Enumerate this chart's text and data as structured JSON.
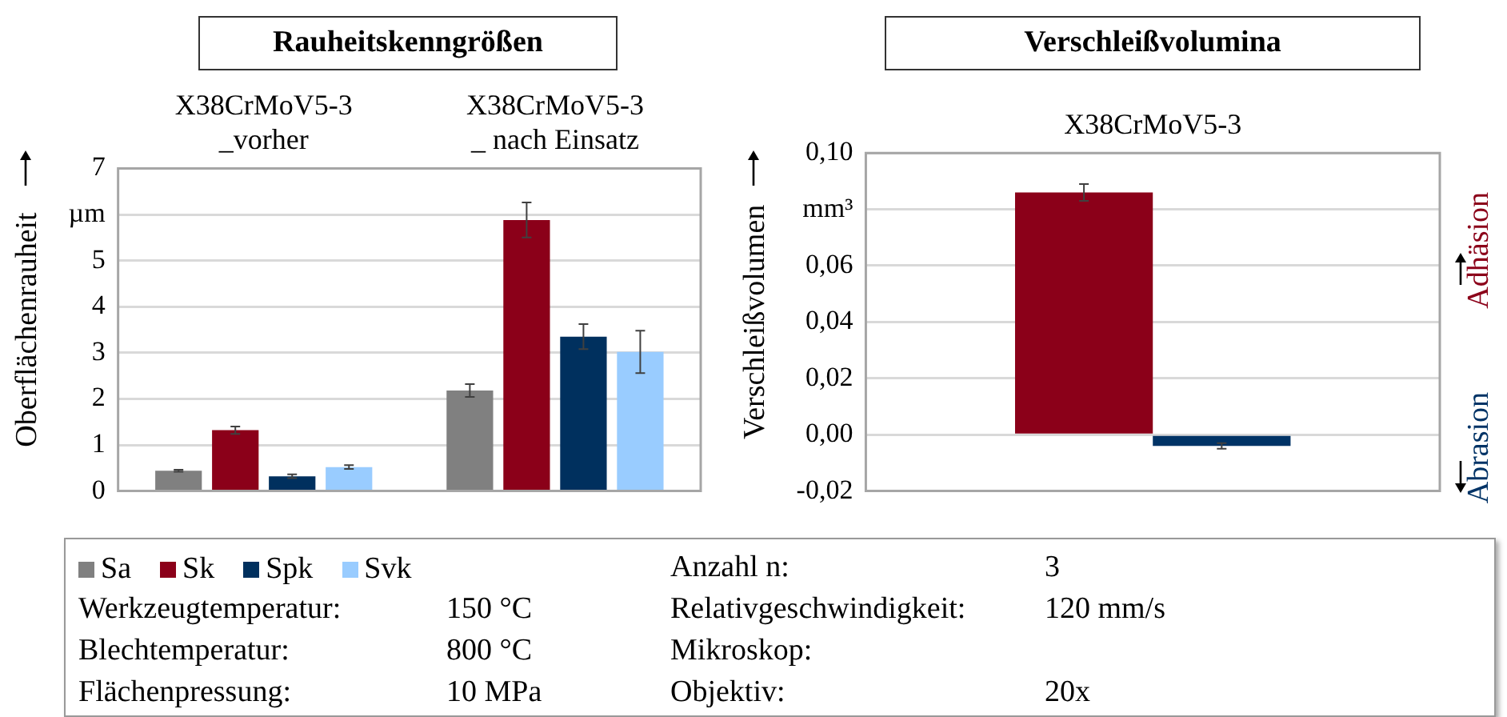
{
  "chart_data": [
    {
      "type": "bar",
      "title": "Rauheitskenngrößen",
      "ylabel": "Oberflächenrauheit",
      "categories": [
        "X38CrMoV5-3\n_vorher",
        "X38CrMoV5-3\n_ nach Einsatz"
      ],
      "series": [
        {
          "name": "Sa",
          "color": "#808080",
          "values": [
            0.44,
            2.18
          ],
          "errors": [
            0.02,
            0.14
          ]
        },
        {
          "name": "Sk",
          "color": "#8b0019",
          "values": [
            1.32,
            5.88
          ],
          "errors": [
            0.08,
            0.38
          ]
        },
        {
          "name": "Spk",
          "color": "#00305e",
          "values": [
            0.32,
            3.35
          ],
          "errors": [
            0.04,
            0.27
          ]
        },
        {
          "name": "Svk",
          "color": "#99ccff",
          "values": [
            0.52,
            3.02
          ],
          "errors": [
            0.04,
            0.46
          ]
        }
      ],
      "ylim": [
        0,
        7
      ],
      "yticks": [
        0,
        1,
        2,
        3,
        4,
        5,
        {
          "value": 6,
          "label": "µm"
        },
        7
      ],
      "grid": "y",
      "legend": "bottom",
      "annotations": [
        "Anzahl n:\t3",
        "Werkzeugtemperatur:\t150 °C",
        "Relativgeschwindigkeit:\t120 mm/s",
        "Blechtemperatur:\t800 °C",
        "Mikroskop:",
        "Flächenpressung:\t10 MPa",
        "Objektiv:\t20x"
      ]
    },
    {
      "type": "bar",
      "title": "Verschleißvolumina",
      "ylabel": "Verschleißvolumen",
      "categories": [
        "X38CrMoV5-3"
      ],
      "series": [
        {
          "name": "Adhäsion",
          "color": "#8b0019",
          "values": [
            0.086
          ],
          "errors": [
            0.003
          ]
        },
        {
          "name": "Abrasion",
          "color": "#003366",
          "values": [
            -0.004
          ],
          "errors": [
            0.001
          ]
        }
      ],
      "ylim": [
        -0.02,
        0.1
      ],
      "yticks": [
        {
          "value": -0.02,
          "label": "-0,02"
        },
        {
          "value": 0,
          "label": "0,00"
        },
        {
          "value": 0.02,
          "label": "0,02"
        },
        {
          "value": 0.04,
          "label": "0,04"
        },
        {
          "value": 0.06,
          "label": "0,06"
        },
        {
          "value": 0.08,
          "label": "mm³"
        },
        {
          "value": 0.1,
          "label": "0,10"
        }
      ],
      "grid": "y",
      "legend": false
    }
  ]
}
